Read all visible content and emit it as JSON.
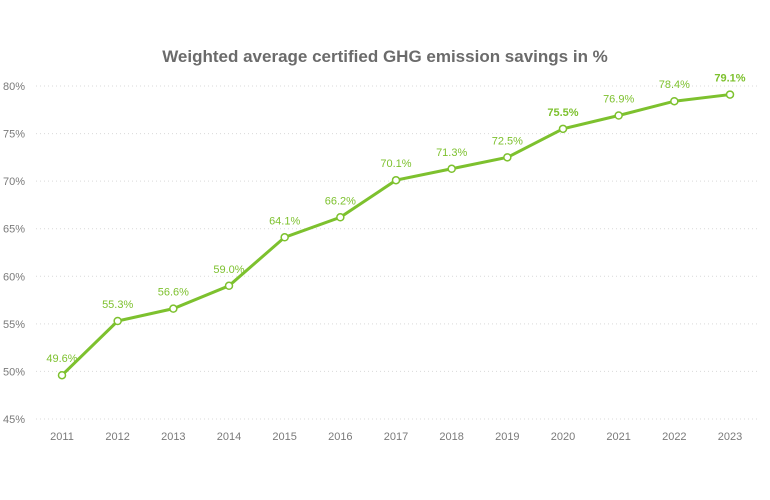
{
  "chart_data": {
    "type": "line",
    "title": "Weighted average certified GHG emission savings in %",
    "xlabel": "",
    "ylabel": "",
    "categories": [
      "2011",
      "2012",
      "2013",
      "2014",
      "2015",
      "2016",
      "2017",
      "2018",
      "2019",
      "2020",
      "2021",
      "2022",
      "2023"
    ],
    "values": [
      49.6,
      55.3,
      56.6,
      59.0,
      64.1,
      66.2,
      70.1,
      71.3,
      72.5,
      75.5,
      76.9,
      78.4,
      79.1
    ],
    "data_labels": [
      "49.6%",
      "55.3%",
      "56.6%",
      "59.0%",
      "64.1%",
      "66.2%",
      "70.1%",
      "71.3%",
      "72.5%",
      "75.5%",
      "76.9%",
      "78.4%",
      "79.1%"
    ],
    "bold_labels": [
      "75.5%",
      "79.1%"
    ],
    "ylim": [
      45,
      80
    ],
    "yticks": [
      "45%",
      "50%",
      "55%",
      "60%",
      "65%",
      "70%",
      "75%",
      "80%"
    ],
    "grid": true,
    "legend": "none",
    "colors": {
      "line": "#7dc12e",
      "label": "#7dc12e",
      "grid": "#d9d9d9"
    }
  }
}
